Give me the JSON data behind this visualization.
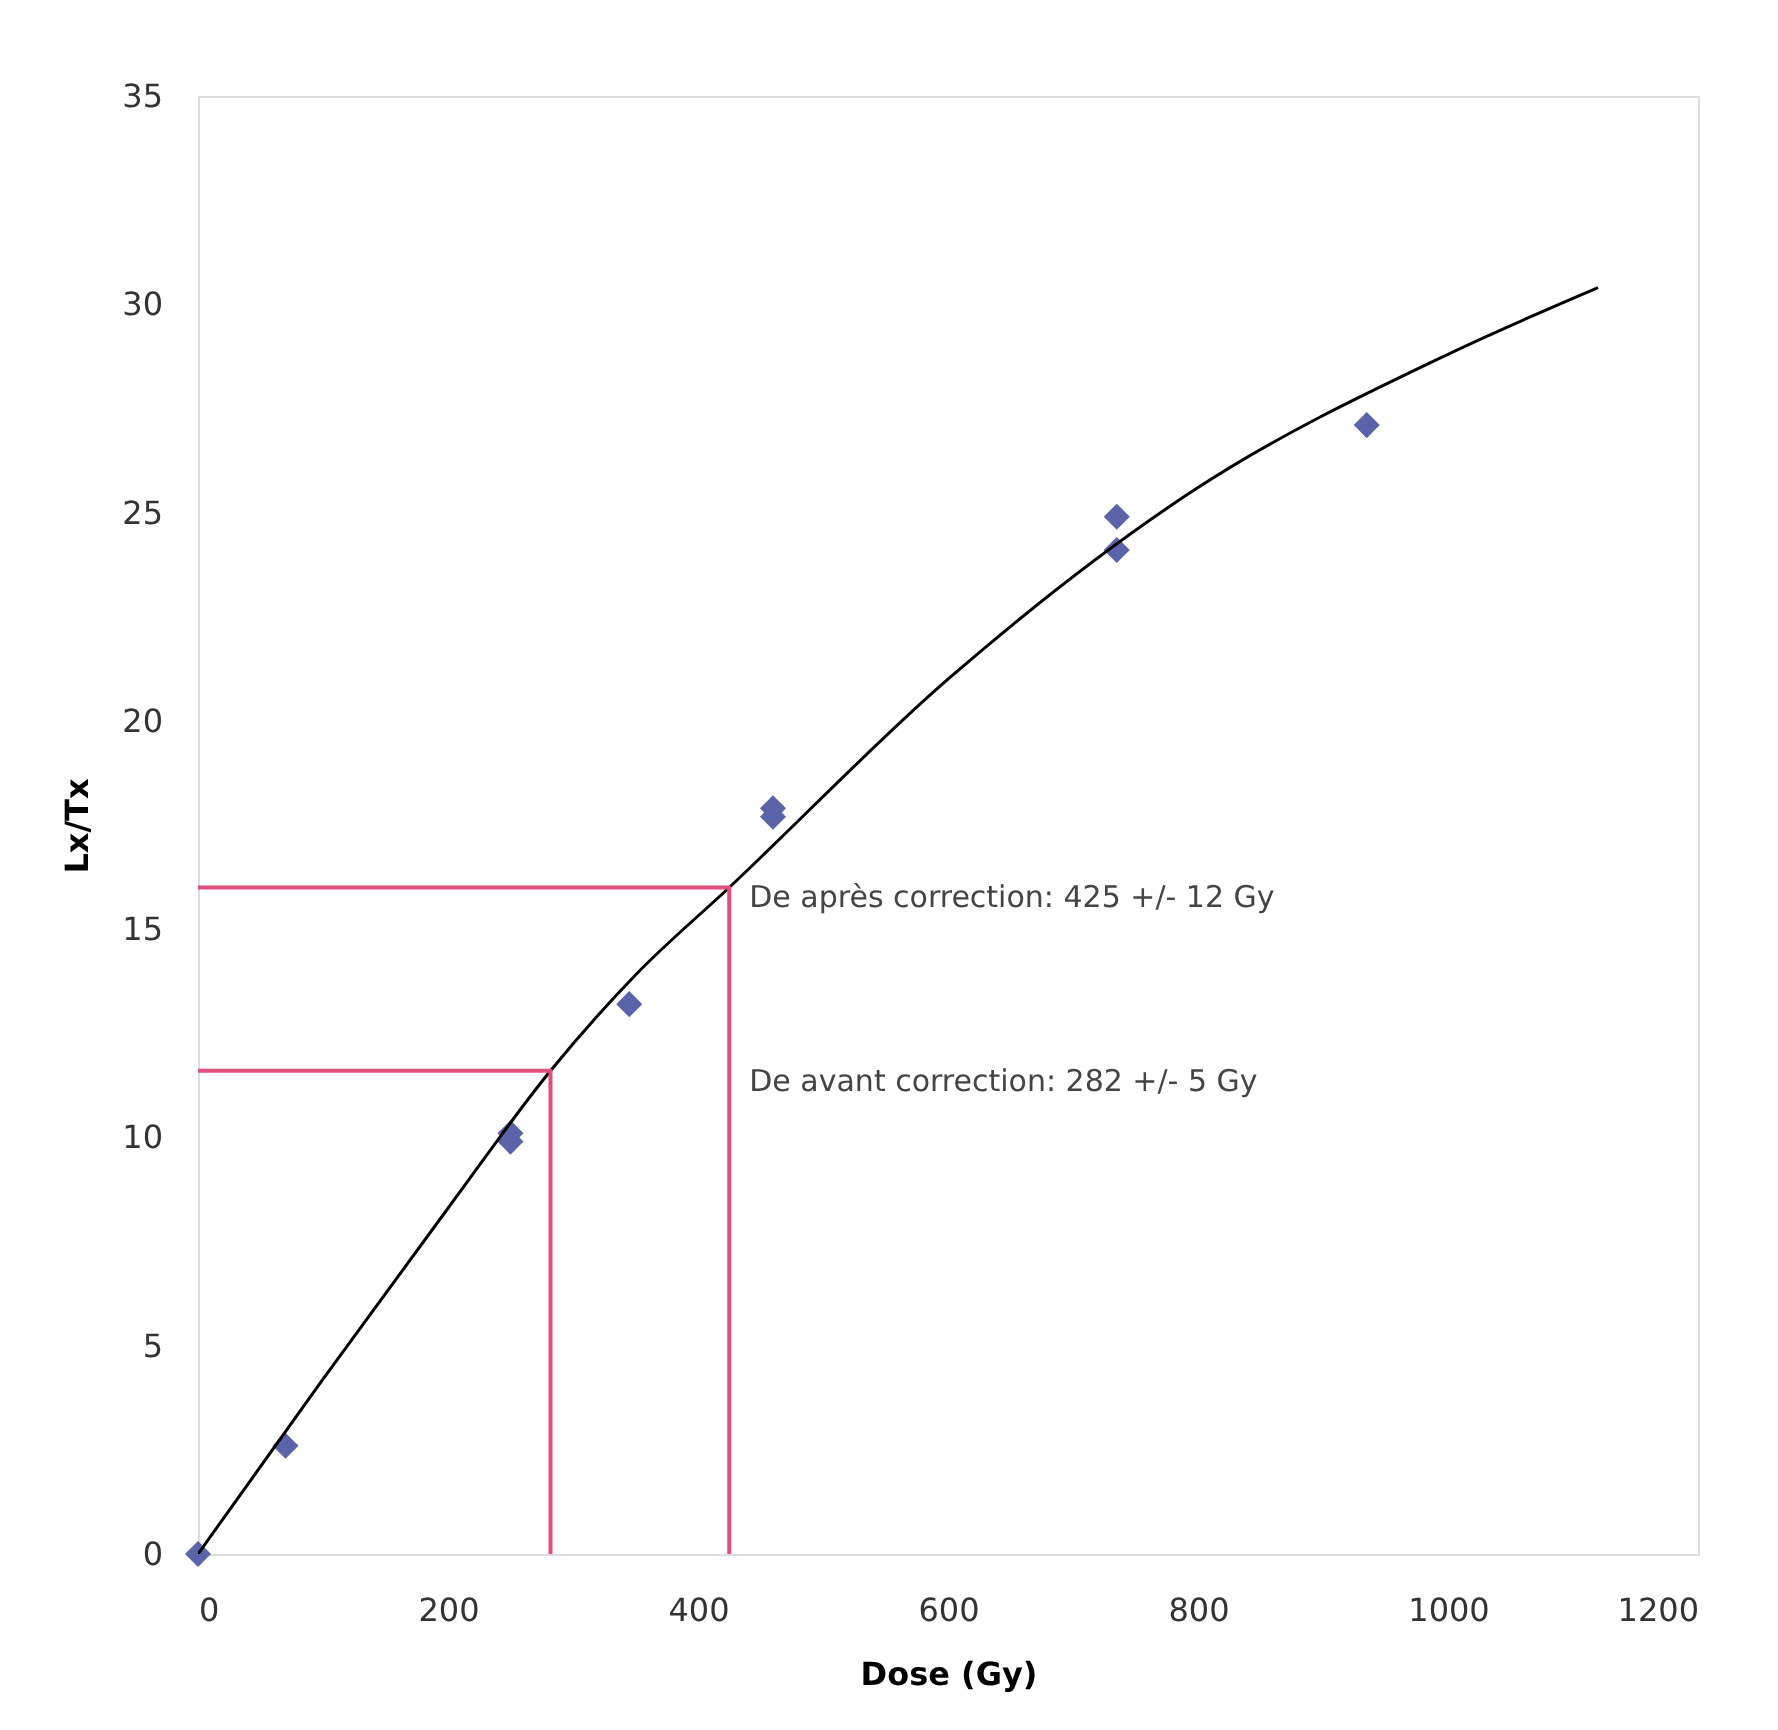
{
  "chart_data": {
    "type": "scatter",
    "xlabel": "Dose (Gy)",
    "ylabel": "Lx/Tx",
    "xlim": [
      0,
      1200
    ],
    "xticks": [
      0,
      200,
      400,
      600,
      800,
      {
        "value": 1000,
        "label": "1000"
      },
      {
        "value": 1200,
        "label": "1200"
      }
    ],
    "ylim": [
      0,
      35
    ],
    "yticks": [
      0,
      5,
      10,
      15,
      20,
      25,
      30,
      35
    ],
    "grid": false,
    "series": [
      {
        "marker": "diamond",
        "color": "#5b64a8",
        "x": [
          0,
          70,
          250,
          250,
          345,
          460,
          460,
          735,
          735,
          935
        ],
        "values": [
          0,
          2.6,
          10.1,
          9.9,
          13.2,
          17.9,
          17.7,
          24.9,
          24.1,
          27.1
        ]
      },
      {
        "type": "line",
        "color": "#000000",
        "x": [
          0,
          100,
          200,
          282,
          350,
          425,
          600,
          800,
          1000,
          1120
        ],
        "values": [
          0,
          4.2,
          8.3,
          11.6,
          13.9,
          16,
          21,
          25.6,
          28.8,
          30.4
        ]
      },
      {
        "type": "line",
        "color": "#e0507a",
        "x": [
          0,
          425,
          425
        ],
        "values": [
          16,
          16,
          0
        ]
      },
      {
        "type": "line",
        "color": "#e0507a",
        "x": [
          0,
          282,
          282
        ],
        "values": [
          11.6,
          11.6,
          0
        ]
      }
    ],
    "annotations": [
      {
        "text": "De après correction: 425 +/- 12 Gy",
        "x": 425,
        "y": 16
      },
      {
        "text": "De avant correction: 282 +/- 5 Gy",
        "x": 425,
        "y": 11.6
      }
    ]
  }
}
